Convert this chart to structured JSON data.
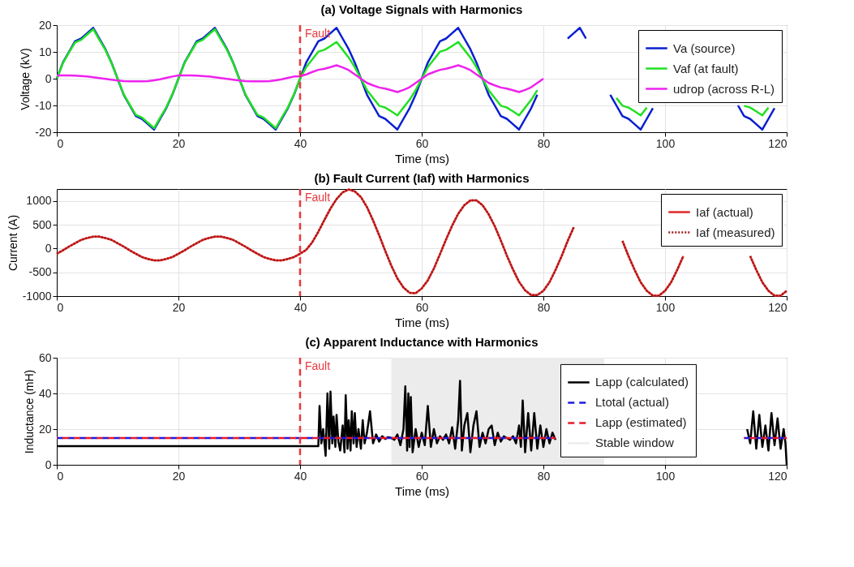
{
  "chart_data": [
    {
      "type": "line",
      "title": "(a) Voltage Signals with Harmonics",
      "xlabel": "Time (ms)",
      "ylabel": "Voltage (kV)",
      "x": [
        0,
        1,
        2,
        3,
        4,
        5,
        6,
        7,
        8,
        9,
        10,
        11,
        12,
        13,
        14,
        15,
        16,
        17,
        18,
        19,
        20,
        21,
        22,
        23,
        24,
        25,
        26,
        27,
        28,
        29,
        30,
        31,
        32,
        33,
        34,
        35,
        36,
        37,
        38,
        39,
        40,
        41,
        42,
        43,
        44,
        45,
        46,
        47,
        48,
        49,
        50,
        51,
        52,
        53,
        54,
        55,
        56,
        57,
        58,
        59,
        60,
        61,
        62,
        63,
        64,
        65,
        66,
        67,
        68,
        69,
        70,
        71,
        72,
        73,
        74,
        75,
        76,
        77,
        78,
        79,
        80,
        81,
        82,
        83,
        84,
        85,
        86,
        87,
        88,
        89,
        90,
        91,
        92,
        93,
        94,
        95,
        96,
        97,
        98,
        99,
        100,
        101,
        102,
        103,
        104,
        105,
        106,
        107,
        108,
        109,
        110,
        111,
        112,
        113,
        114,
        115,
        116,
        117,
        118
      ],
      "series": [
        {
          "name": "Va (source)",
          "color": "#0a1fd0",
          "values": [
            0,
            6,
            10,
            14,
            15,
            17,
            19,
            15,
            11,
            6,
            0,
            -6,
            -10,
            -14,
            -15,
            -17,
            -19,
            -15,
            -11,
            -6,
            0,
            6,
            10,
            14,
            15,
            17,
            19,
            15,
            11,
            6,
            0,
            -6,
            -10,
            -14,
            -15,
            -17,
            -19,
            -15,
            -11,
            -6,
            0,
            6,
            10,
            14,
            15,
            17,
            19,
            15,
            11,
            6,
            0,
            -6,
            -10,
            -14,
            -15,
            -17,
            -19,
            -15,
            -11,
            -6,
            0,
            6,
            10,
            14,
            15,
            17,
            19,
            15,
            11,
            6,
            0,
            -6,
            -10,
            -14,
            -15,
            -17,
            -19,
            -15,
            -11,
            -6,
            null,
            null,
            null,
            null,
            15,
            17,
            19,
            15,
            null,
            null,
            null,
            -6,
            -10,
            -14,
            -15,
            -17,
            -19,
            -15,
            -11,
            null,
            null,
            null,
            null,
            null,
            null,
            null,
            null,
            null,
            null,
            null,
            null,
            null,
            -10,
            -14,
            -15,
            -17,
            -19,
            -15,
            -11
          ]
        },
        {
          "name": "Vaf (at fault)",
          "color": "#22e022",
          "values": [
            0,
            5.8,
            9.7,
            13.5,
            14.5,
            16.5,
            18.5,
            14.5,
            10.7,
            5.8,
            0,
            -5.8,
            -9.7,
            -13.5,
            -14.5,
            -16.5,
            -18.5,
            -14.5,
            -10.7,
            -5.8,
            0,
            5.8,
            9.7,
            13.5,
            14.5,
            16.5,
            18.5,
            14.5,
            10.7,
            5.8,
            0,
            -5.8,
            -9.7,
            -13.5,
            -14.5,
            -16.5,
            -18.5,
            -14.5,
            -10.7,
            -5.8,
            0,
            4.3,
            7.2,
            10.1,
            10.8,
            12.2,
            13.7,
            10.8,
            7.9,
            4.3,
            0,
            -4.3,
            -7.2,
            -10.1,
            -10.8,
            -12.2,
            -13.7,
            -10.8,
            -7.9,
            -4.3,
            0,
            4.3,
            7.2,
            10.1,
            10.8,
            12.2,
            13.7,
            10.8,
            7.9,
            4.3,
            0,
            -4.3,
            -7.2,
            -10.1,
            -10.8,
            -12.2,
            -13.7,
            -10.8,
            -7.9,
            -4.3,
            null,
            null,
            null,
            null,
            null,
            null,
            null,
            null,
            null,
            null,
            null,
            null,
            -7.2,
            -10.1,
            -10.8,
            -12.2,
            -13.7,
            -10.8,
            null,
            null,
            null,
            null,
            null,
            null,
            null,
            null,
            null,
            null,
            null,
            null,
            null,
            null,
            null,
            -10.1,
            -10.8,
            -12.2,
            -13.7,
            -10.8,
            null
          ]
        },
        {
          "name": "udrop (across R-L)",
          "color": "#ee22ee",
          "values": [
            1.2,
            1.2,
            1.2,
            1.1,
            1,
            0.8,
            0.5,
            0.2,
            -0.1,
            -0.4,
            -0.7,
            -0.9,
            -1,
            -1,
            -1,
            -0.9,
            -0.6,
            -0.2,
            0.3,
            0.8,
            1.2,
            1.2,
            1.2,
            1.1,
            1,
            0.8,
            0.5,
            0.2,
            -0.1,
            -0.4,
            -0.7,
            -0.9,
            -1,
            -1,
            -1,
            -0.9,
            -0.6,
            -0.2,
            0.3,
            0.8,
            0.9,
            1.6,
            2.5,
            3.3,
            3.7,
            4.3,
            5,
            4.2,
            3.2,
            1.6,
            0,
            -1.6,
            -2.5,
            -3.3,
            -3.7,
            -4.3,
            -5,
            -4.2,
            -3.2,
            -1.6,
            0,
            1.6,
            2.5,
            3.3,
            3.7,
            4.3,
            5,
            4.2,
            3.2,
            1.6,
            0,
            -1.6,
            -2.5,
            -3.3,
            -3.7,
            -4.3,
            -5,
            -4.2,
            -3.2,
            -1.6,
            0,
            null,
            null,
            null,
            null,
            null,
            null,
            null,
            null,
            null,
            null,
            null,
            null,
            null,
            null,
            null,
            null,
            null,
            null,
            null,
            null,
            null,
            null,
            null,
            null,
            null,
            null,
            null,
            null,
            null,
            null,
            null,
            null,
            null,
            null,
            null,
            null,
            null,
            null
          ]
        }
      ],
      "xlim": [
        0,
        120
      ],
      "xticks": [
        0,
        20,
        40,
        60,
        80,
        100,
        120
      ],
      "ylim": [
        -20,
        20
      ],
      "yticks": [
        -20,
        -10,
        0,
        10,
        20
      ],
      "ref_lines": [
        {
          "axis": "x",
          "value": 40,
          "label": "Fault",
          "color": "#e8383d",
          "line_style": "dashed"
        }
      ],
      "grid": true,
      "legend": "top right",
      "line_style": "solid"
    },
    {
      "type": "line",
      "title": "(b) Fault Current (Iaf) with Harmonics",
      "xlabel": "Time (ms)",
      "ylabel": "Current (A)",
      "x": [
        0,
        1,
        2,
        3,
        4,
        5,
        6,
        7,
        8,
        9,
        10,
        11,
        12,
        13,
        14,
        15,
        16,
        17,
        18,
        19,
        20,
        21,
        22,
        23,
        24,
        25,
        26,
        27,
        28,
        29,
        30,
        31,
        32,
        33,
        34,
        35,
        36,
        37,
        38,
        39,
        40,
        41,
        42,
        43,
        44,
        45,
        46,
        47,
        48,
        49,
        50,
        51,
        52,
        53,
        54,
        55,
        56,
        57,
        58,
        59,
        60,
        61,
        62,
        63,
        64,
        65,
        66,
        67,
        68,
        69,
        70,
        71,
        72,
        73,
        74,
        75,
        76,
        77,
        78,
        79,
        80,
        81,
        82,
        83,
        84,
        85,
        86,
        87,
        88,
        89,
        90,
        91,
        92,
        93,
        94,
        95,
        96,
        97,
        98,
        99,
        100,
        101,
        102,
        103,
        104,
        105,
        106,
        107,
        108,
        109,
        110,
        111,
        112,
        113,
        114,
        115,
        116,
        117,
        118,
        119,
        120
      ],
      "series": [
        {
          "name": "Iaf (actual)",
          "color": "#e02828",
          "line_style": "solid",
          "values": [
            -110,
            -40,
            40,
            110,
            180,
            220,
            250,
            250,
            220,
            180,
            110,
            40,
            -40,
            -110,
            -180,
            -220,
            -250,
            -250,
            -220,
            -180,
            -110,
            -40,
            40,
            110,
            180,
            220,
            250,
            250,
            220,
            180,
            110,
            40,
            -40,
            -110,
            -180,
            -220,
            -250,
            -250,
            -220,
            -180,
            -110,
            -30,
            130,
            350,
            600,
            840,
            1040,
            1180,
            1240,
            1200,
            1080,
            870,
            590,
            280,
            -50,
            -360,
            -630,
            -820,
            -930,
            -940,
            -840,
            -670,
            -420,
            -120,
            190,
            480,
            730,
            910,
            1010,
            1010,
            910,
            720,
            470,
            170,
            -150,
            -440,
            -700,
            -880,
            -980,
            -980,
            -890,
            -710,
            -450,
            -160,
            160,
            450,
            null,
            null,
            null,
            null,
            null,
            null,
            null,
            160,
            -160,
            -450,
            -710,
            -890,
            -990,
            -990,
            -890,
            -710,
            -450,
            -160,
            null,
            null,
            null,
            null,
            null,
            null,
            null,
            null,
            null,
            null,
            -160,
            -450,
            -710,
            -890,
            -990,
            -990,
            -890
          ]
        },
        {
          "name": "Iaf (measured)",
          "color": "#a01818",
          "line_style": "dotted",
          "values": [
            -110,
            -40,
            40,
            110,
            180,
            220,
            250,
            250,
            220,
            180,
            110,
            40,
            -40,
            -110,
            -180,
            -220,
            -250,
            -250,
            -220,
            -180,
            -110,
            -40,
            40,
            110,
            180,
            220,
            250,
            250,
            220,
            180,
            110,
            40,
            -40,
            -110,
            -180,
            -220,
            -250,
            -250,
            -220,
            -180,
            -110,
            -30,
            130,
            350,
            600,
            840,
            1040,
            1180,
            1240,
            1200,
            1080,
            870,
            590,
            280,
            -50,
            -360,
            -630,
            -820,
            -930,
            -940,
            -840,
            -670,
            -420,
            -120,
            190,
            480,
            730,
            910,
            1010,
            1010,
            910,
            720,
            470,
            170,
            -150,
            -440,
            -700,
            -880,
            -980,
            -980,
            -890,
            -710,
            -450,
            -160,
            160,
            450,
            null,
            null,
            null,
            null,
            null,
            null,
            null,
            160,
            -160,
            -450,
            -710,
            -890,
            -990,
            -990,
            -890,
            -710,
            -450,
            -160,
            null,
            null,
            null,
            null,
            null,
            null,
            null,
            null,
            null,
            null,
            -160,
            -450,
            -710,
            -890,
            -990,
            -990,
            -890
          ]
        }
      ],
      "xlim": [
        0,
        120
      ],
      "xticks": [
        0,
        20,
        40,
        60,
        80,
        100,
        120
      ],
      "ylim": [
        -1000,
        1250
      ],
      "yticks": [
        -1000,
        -500,
        0,
        500,
        1000
      ],
      "ref_lines": [
        {
          "axis": "x",
          "value": 40,
          "label": "Fault",
          "color": "#e8383d",
          "line_style": "dashed"
        }
      ],
      "grid": true,
      "legend": "top right"
    },
    {
      "type": "line",
      "title": "(c) Apparent Inductance with Harmonics",
      "xlabel": "Time (ms)",
      "ylabel": "Inductance (mH)",
      "series": [
        {
          "name": "Lapp (calculated)",
          "color": "#000000",
          "line_style": "solid",
          "x": [
            0,
            43,
            43.2,
            43.5,
            43.8,
            44.2,
            44.5,
            44.8,
            45,
            45.3,
            45.5,
            45.8,
            46,
            46.3,
            46.6,
            47,
            47.3,
            47.5,
            47.8,
            48,
            48.3,
            48.5,
            48.8,
            49,
            49.3,
            49.6,
            50,
            50.3,
            50.6,
            51,
            51.5,
            52,
            52.5,
            53,
            53.5,
            54,
            54.5,
            55,
            55.5,
            56,
            56.5,
            57,
            57.3,
            57.6,
            57.8,
            58,
            58.2,
            58.5,
            59,
            59.5,
            60,
            60.5,
            61,
            61.5,
            62,
            62.5,
            63,
            63.5,
            64,
            64.5,
            65,
            65.5,
            66,
            66.3,
            66.6,
            67,
            67.5,
            68,
            68.5,
            69,
            69.5,
            70,
            70.5,
            71,
            71.5,
            72,
            72.5,
            73,
            73.5,
            74,
            74.5,
            75,
            75.5,
            76,
            76.3,
            76.6,
            77,
            77.5,
            78,
            78.5,
            79,
            79.5,
            80,
            80.5,
            81,
            81.5,
            82,
            97,
            113.5,
            114,
            114.5,
            115,
            115.5,
            116,
            116.5,
            117,
            117.5,
            118,
            118.5,
            119,
            119.5,
            119.8,
            120
          ],
          "values": [
            10.5,
            10.5,
            33,
            12,
            20,
            5,
            40,
            9,
            41,
            12,
            27,
            10,
            28,
            13,
            8,
            22,
            7,
            39,
            9,
            25,
            8,
            30,
            12,
            29,
            10,
            20,
            9,
            25,
            12,
            18,
            30,
            12,
            17,
            13,
            16,
            14.5,
            15.5,
            15,
            14,
            17,
            11,
            20,
            44,
            8,
            40,
            10,
            38,
            7,
            20,
            10,
            18,
            11,
            33,
            10,
            20,
            12,
            16,
            14,
            17,
            12,
            21,
            9,
            25,
            47,
            8,
            22,
            29,
            7,
            22,
            30,
            10,
            18,
            12,
            20,
            22,
            11,
            18,
            13,
            16,
            15,
            14,
            16,
            12,
            22,
            10,
            36,
            7,
            29,
            8,
            29,
            9,
            22,
            10,
            20,
            12,
            18,
            14,
            null,
            20,
            12,
            30,
            9,
            28,
            10,
            22,
            8,
            29,
            11,
            26,
            9,
            20,
            12,
            0
          ]
        },
        {
          "name": "Ltotal (actual)",
          "color": "#1a1ae6",
          "line_style": "dashed",
          "x": [
            0,
            82,
            97,
            113,
            120
          ],
          "values": [
            15,
            15,
            null,
            15,
            15
          ]
        },
        {
          "name": "Lapp (estimated)",
          "color": "#e6192b",
          "line_style": "dashed",
          "x": [
            0,
            82,
            97,
            113,
            120
          ],
          "values": [
            15,
            15,
            null,
            15,
            15
          ]
        }
      ],
      "bands": [
        {
          "axis": "x",
          "from": 55,
          "to": 90,
          "label": "Stable window",
          "color": "#ececec"
        }
      ],
      "xlim": [
        0,
        120
      ],
      "xticks": [
        0,
        20,
        40,
        60,
        80,
        100,
        120
      ],
      "ylim": [
        0,
        60
      ],
      "yticks": [
        0,
        20,
        40,
        60
      ],
      "ref_lines": [
        {
          "axis": "x",
          "value": 40,
          "label": "Fault",
          "color": "#e8383d",
          "line_style": "dashed"
        }
      ],
      "grid": true,
      "legend": "right"
    }
  ]
}
